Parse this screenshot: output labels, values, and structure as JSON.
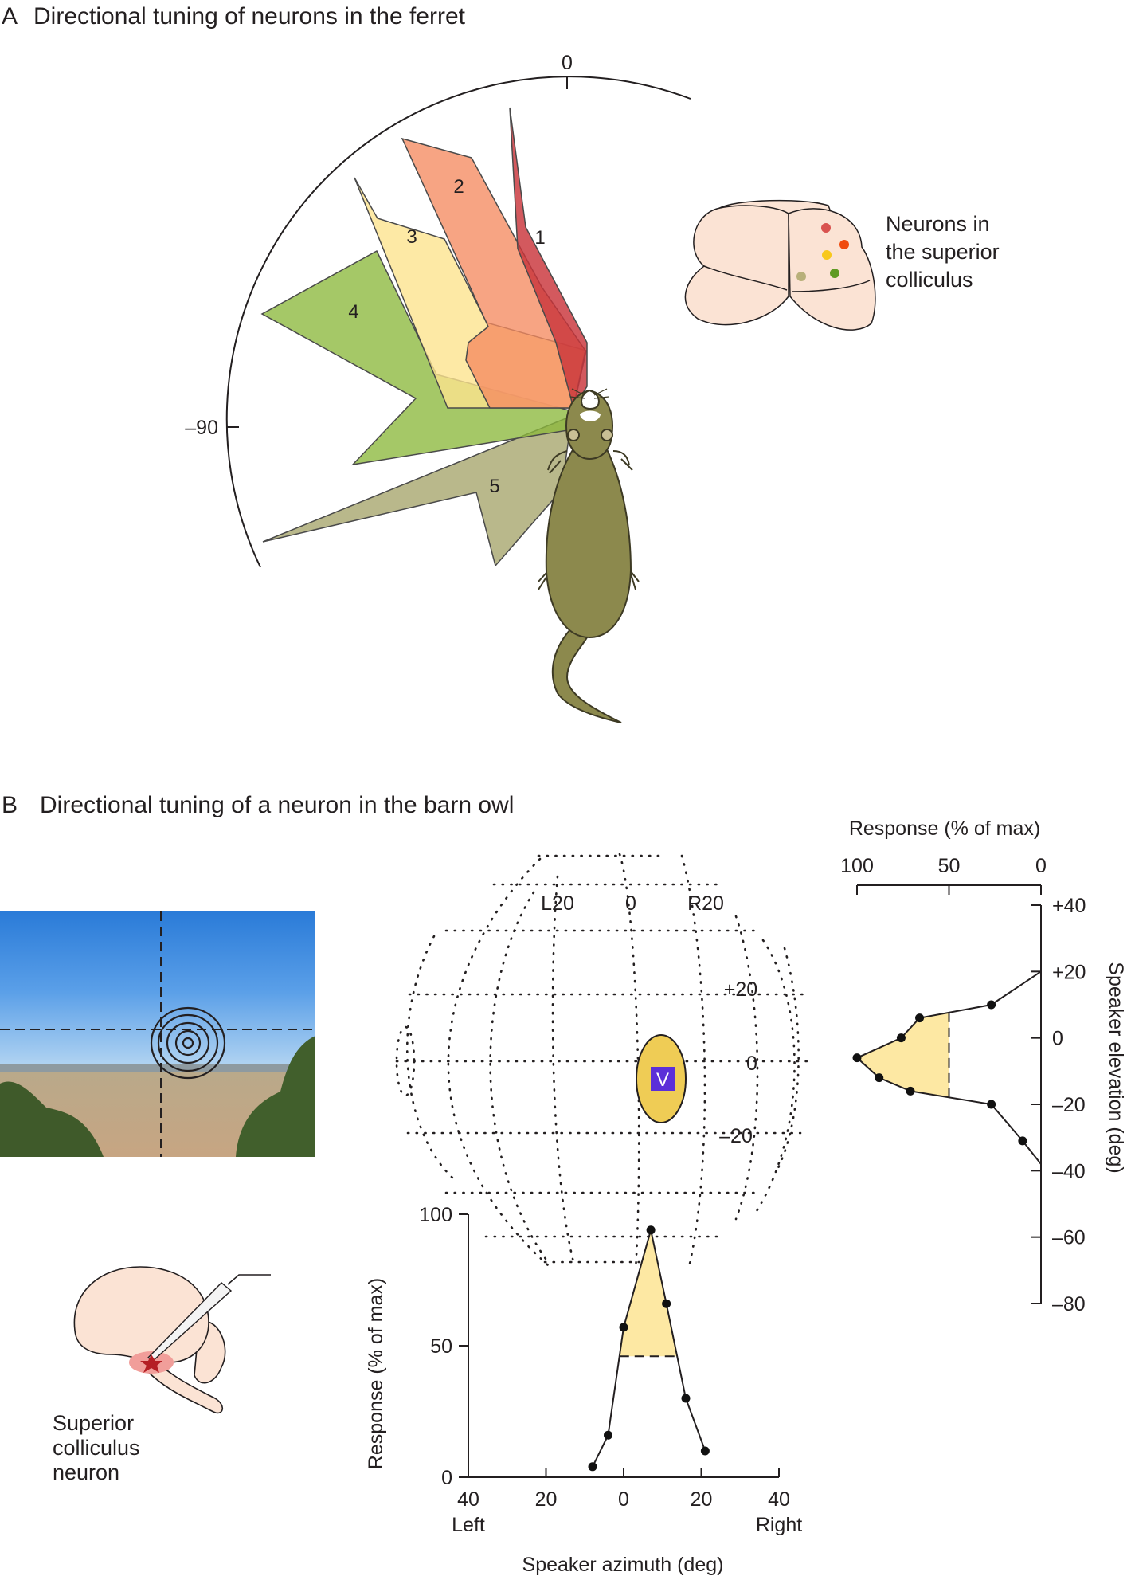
{
  "panel_a": {
    "letter": "A",
    "title": "Directional tuning of neurons in the ferret",
    "angle_ticks": [
      "0",
      "–90"
    ],
    "lobes": [
      {
        "label": "1",
        "color": "#c9353a"
      },
      {
        "label": "2",
        "color": "#f58a60"
      },
      {
        "label": "3",
        "color": "#fde38f"
      },
      {
        "label": "4",
        "color": "#8cb83c"
      },
      {
        "label": "5",
        "color": "#a5a46a"
      }
    ],
    "inset_caption": [
      "Neurons in",
      "the superior",
      "colliculus"
    ],
    "neuron_dot_colors": [
      "#d9534f",
      "#f04a0c",
      "#f8c81b",
      "#5f9a22",
      "#b8b07a"
    ]
  },
  "panel_b": {
    "letter": "B",
    "title": "Directional tuning of a neuron in the barn owl",
    "globe_labels": {
      "left": "L20",
      "center": "0",
      "right": "R20",
      "up": "+20",
      "mid": "0",
      "down": "–20"
    },
    "visual_field_marker": "V",
    "brain_caption": [
      "Superior",
      "colliculus",
      "neuron"
    ]
  },
  "chart_data": [
    {
      "type": "line",
      "title": "",
      "xlabel": "Speaker azimuth (deg)",
      "ylabel": "Response (% of max)",
      "x_tick_labels": [
        "40",
        "20",
        "0",
        "20",
        "40"
      ],
      "x_end_labels": {
        "left": "Left",
        "right": "Right"
      },
      "y_tick_labels": [
        "100",
        "50",
        "0"
      ],
      "xlim": [
        -40,
        40
      ],
      "ylim": [
        0,
        100
      ],
      "series": [
        {
          "x": [
            -8,
            -4,
            0,
            7,
            11,
            16,
            21
          ],
          "y": [
            4,
            16,
            57,
            94,
            66,
            30,
            10
          ]
        }
      ],
      "threshold": 46
    },
    {
      "type": "line",
      "title": "",
      "xlabel": "Response (% of max)",
      "ylabel": "Speaker elevation (deg)",
      "x_tick_labels": [
        "100",
        "50",
        "0"
      ],
      "y_tick_labels": [
        "+40",
        "+20",
        "0",
        "–20",
        "–40",
        "–60",
        "–80"
      ],
      "xlim": [
        100,
        0
      ],
      "ylim": [
        -80,
        40
      ],
      "series": [
        {
          "x": [
            0,
            27,
            66,
            76,
            100,
            88,
            71,
            27,
            10,
            0
          ],
          "y": [
            20,
            10,
            6,
            0,
            -6,
            -12,
            -16,
            -20,
            -31,
            -38
          ]
        }
      ],
      "threshold": 50
    }
  ]
}
